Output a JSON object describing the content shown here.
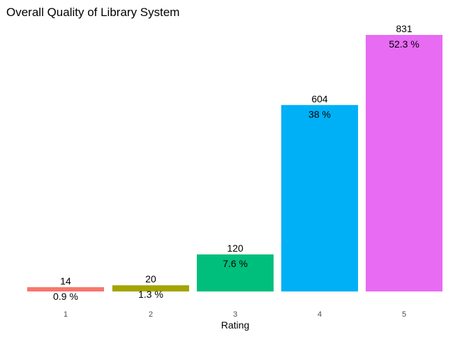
{
  "chart_data": {
    "type": "bar",
    "title": "Overall Quality of Library System",
    "xlabel": "Rating",
    "ylabel": "",
    "categories": [
      "1",
      "2",
      "3",
      "4",
      "5"
    ],
    "values": [
      14,
      20,
      120,
      604,
      831
    ],
    "percent_labels": [
      "0.9 %",
      "1.3 %",
      "7.6 %",
      "38 %",
      "52.3 %"
    ],
    "colors": [
      "#F8766D",
      "#A3A500",
      "#00BF7D",
      "#00B0F6",
      "#E76BF3"
    ],
    "ylim": [
      0,
      831
    ],
    "grid": false,
    "legend": "none"
  }
}
